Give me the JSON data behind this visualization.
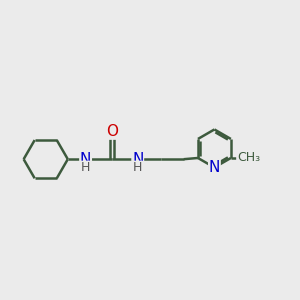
{
  "background_color": "#EBEBEB",
  "bond_color": "#3d5a3d",
  "bond_width": 1.8,
  "atom_colors": {
    "N": "#0000cc",
    "O": "#cc0000",
    "C": "#3d5a3d",
    "H": "#555555"
  },
  "font_size": 10,
  "fig_width": 3.0,
  "fig_height": 3.0,
  "dpi": 100
}
